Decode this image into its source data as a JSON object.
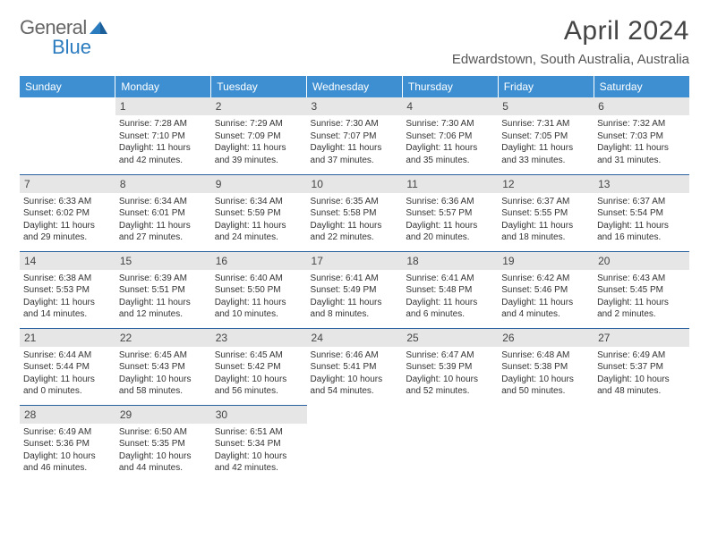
{
  "brand": {
    "part1": "General",
    "part2": "Blue",
    "tri_color": "#2b7bbf"
  },
  "title": "April 2024",
  "location": "Edwardstown, South Australia, Australia",
  "header_bg": "#3d8fd1",
  "daynum_bg": "#e6e6e6",
  "rule_color": "#2860a0",
  "weekdays": [
    "Sunday",
    "Monday",
    "Tuesday",
    "Wednesday",
    "Thursday",
    "Friday",
    "Saturday"
  ],
  "weeks": [
    [
      null,
      {
        "n": "1",
        "sr": "7:28 AM",
        "ss": "7:10 PM",
        "dl": "11 hours and 42 minutes."
      },
      {
        "n": "2",
        "sr": "7:29 AM",
        "ss": "7:09 PM",
        "dl": "11 hours and 39 minutes."
      },
      {
        "n": "3",
        "sr": "7:30 AM",
        "ss": "7:07 PM",
        "dl": "11 hours and 37 minutes."
      },
      {
        "n": "4",
        "sr": "7:30 AM",
        "ss": "7:06 PM",
        "dl": "11 hours and 35 minutes."
      },
      {
        "n": "5",
        "sr": "7:31 AM",
        "ss": "7:05 PM",
        "dl": "11 hours and 33 minutes."
      },
      {
        "n": "6",
        "sr": "7:32 AM",
        "ss": "7:03 PM",
        "dl": "11 hours and 31 minutes."
      }
    ],
    [
      {
        "n": "7",
        "sr": "6:33 AM",
        "ss": "6:02 PM",
        "dl": "11 hours and 29 minutes."
      },
      {
        "n": "8",
        "sr": "6:34 AM",
        "ss": "6:01 PM",
        "dl": "11 hours and 27 minutes."
      },
      {
        "n": "9",
        "sr": "6:34 AM",
        "ss": "5:59 PM",
        "dl": "11 hours and 24 minutes."
      },
      {
        "n": "10",
        "sr": "6:35 AM",
        "ss": "5:58 PM",
        "dl": "11 hours and 22 minutes."
      },
      {
        "n": "11",
        "sr": "6:36 AM",
        "ss": "5:57 PM",
        "dl": "11 hours and 20 minutes."
      },
      {
        "n": "12",
        "sr": "6:37 AM",
        "ss": "5:55 PM",
        "dl": "11 hours and 18 minutes."
      },
      {
        "n": "13",
        "sr": "6:37 AM",
        "ss": "5:54 PM",
        "dl": "11 hours and 16 minutes."
      }
    ],
    [
      {
        "n": "14",
        "sr": "6:38 AM",
        "ss": "5:53 PM",
        "dl": "11 hours and 14 minutes."
      },
      {
        "n": "15",
        "sr": "6:39 AM",
        "ss": "5:51 PM",
        "dl": "11 hours and 12 minutes."
      },
      {
        "n": "16",
        "sr": "6:40 AM",
        "ss": "5:50 PM",
        "dl": "11 hours and 10 minutes."
      },
      {
        "n": "17",
        "sr": "6:41 AM",
        "ss": "5:49 PM",
        "dl": "11 hours and 8 minutes."
      },
      {
        "n": "18",
        "sr": "6:41 AM",
        "ss": "5:48 PM",
        "dl": "11 hours and 6 minutes."
      },
      {
        "n": "19",
        "sr": "6:42 AM",
        "ss": "5:46 PM",
        "dl": "11 hours and 4 minutes."
      },
      {
        "n": "20",
        "sr": "6:43 AM",
        "ss": "5:45 PM",
        "dl": "11 hours and 2 minutes."
      }
    ],
    [
      {
        "n": "21",
        "sr": "6:44 AM",
        "ss": "5:44 PM",
        "dl": "11 hours and 0 minutes."
      },
      {
        "n": "22",
        "sr": "6:45 AM",
        "ss": "5:43 PM",
        "dl": "10 hours and 58 minutes."
      },
      {
        "n": "23",
        "sr": "6:45 AM",
        "ss": "5:42 PM",
        "dl": "10 hours and 56 minutes."
      },
      {
        "n": "24",
        "sr": "6:46 AM",
        "ss": "5:41 PM",
        "dl": "10 hours and 54 minutes."
      },
      {
        "n": "25",
        "sr": "6:47 AM",
        "ss": "5:39 PM",
        "dl": "10 hours and 52 minutes."
      },
      {
        "n": "26",
        "sr": "6:48 AM",
        "ss": "5:38 PM",
        "dl": "10 hours and 50 minutes."
      },
      {
        "n": "27",
        "sr": "6:49 AM",
        "ss": "5:37 PM",
        "dl": "10 hours and 48 minutes."
      }
    ],
    [
      {
        "n": "28",
        "sr": "6:49 AM",
        "ss": "5:36 PM",
        "dl": "10 hours and 46 minutes."
      },
      {
        "n": "29",
        "sr": "6:50 AM",
        "ss": "5:35 PM",
        "dl": "10 hours and 44 minutes."
      },
      {
        "n": "30",
        "sr": "6:51 AM",
        "ss": "5:34 PM",
        "dl": "10 hours and 42 minutes."
      },
      null,
      null,
      null,
      null
    ]
  ],
  "labels": {
    "sunrise": "Sunrise: ",
    "sunset": "Sunset: ",
    "daylight": "Daylight: "
  }
}
